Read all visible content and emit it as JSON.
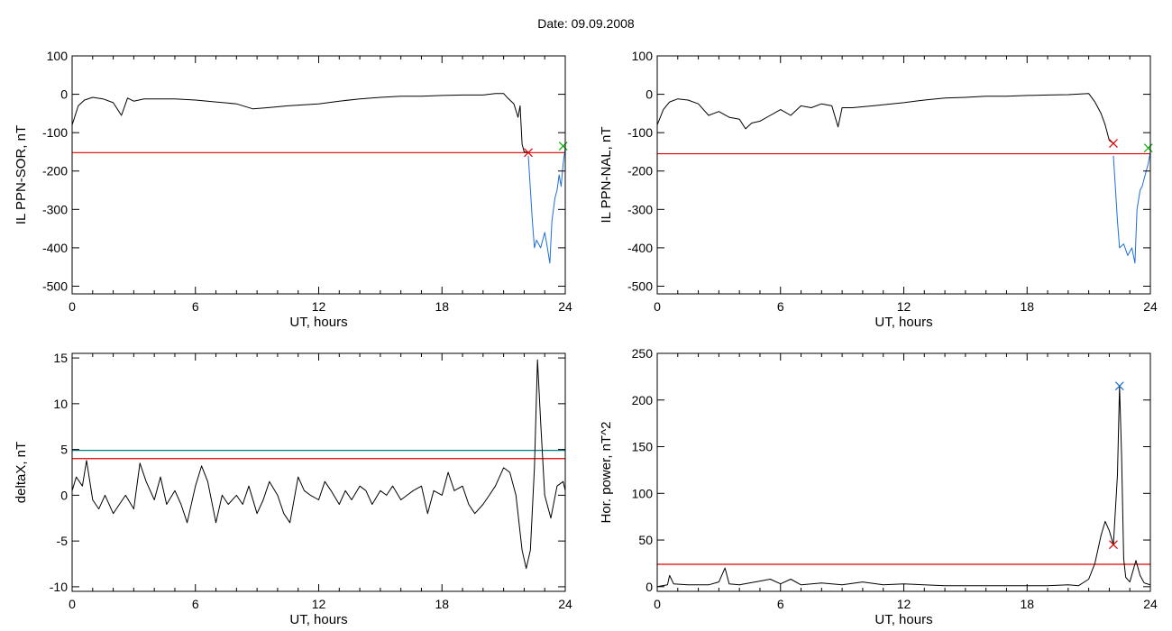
{
  "page_title": "Date:  09.09.2008",
  "colors": {
    "axis": "#000000",
    "trace": "#000000",
    "threshold_red": "#e00000",
    "threshold_teal": "#008080",
    "storm_blue": "#1f6fd6",
    "marker_green": "#00b000"
  },
  "chart_data": [
    {
      "id": "sor",
      "type": "line",
      "ylabel": "IL PPN-SOR, nT",
      "xlabel": "UT, hours",
      "xlim": [
        0,
        24
      ],
      "ylim": [
        -520,
        100
      ],
      "xticks": [
        0,
        6,
        12,
        18,
        24
      ],
      "yticks": [
        100,
        0,
        -100,
        -200,
        -300,
        -400,
        -500
      ],
      "grid": false,
      "series": [
        {
          "color": "#000000",
          "x": [
            0,
            0.3,
            0.6,
            1,
            1.5,
            2,
            2.4,
            2.7,
            3,
            3.5,
            4,
            5,
            6,
            7,
            8,
            8.8,
            9.5,
            10.5,
            12,
            13,
            14,
            15,
            16,
            17,
            18,
            19,
            20,
            20.6,
            21,
            21.2,
            21.5,
            21.7,
            21.8,
            21.9,
            22.0,
            22.2
          ],
          "y": [
            -80,
            -30,
            -15,
            -8,
            -12,
            -22,
            -55,
            -10,
            -18,
            -12,
            -12,
            -12,
            -15,
            -20,
            -25,
            -38,
            -35,
            -30,
            -25,
            -18,
            -12,
            -8,
            -5,
            -5,
            -3,
            -2,
            -2,
            2,
            2,
            -10,
            -25,
            -60,
            -30,
            -130,
            -150,
            -152
          ]
        },
        {
          "color": "#1f6fd6",
          "x": [
            22.2,
            22.4,
            22.5,
            22.6,
            22.8,
            23.0,
            23.1,
            23.25,
            23.35,
            23.5,
            23.6,
            23.7,
            23.8,
            23.9,
            24.0
          ],
          "y": [
            -160,
            -330,
            -400,
            -380,
            -400,
            -360,
            -390,
            -440,
            -330,
            -270,
            -250,
            -210,
            -240,
            -180,
            -140
          ]
        }
      ],
      "thresholds": [
        {
          "y": -152,
          "color": "#e00000"
        }
      ],
      "markers": [
        {
          "x": 22.2,
          "y": -152,
          "color": "#e00000"
        },
        {
          "x": 23.9,
          "y": -135,
          "color": "#00b000"
        }
      ]
    },
    {
      "id": "nal",
      "type": "line",
      "ylabel": "IL PPN-NAL, nT",
      "xlabel": "UT, hours",
      "xlim": [
        0,
        24
      ],
      "ylim": [
        -520,
        100
      ],
      "xticks": [
        0,
        6,
        12,
        18,
        24
      ],
      "yticks": [
        100,
        0,
        -100,
        -200,
        -300,
        -400,
        -500
      ],
      "grid": false,
      "series": [
        {
          "color": "#000000",
          "x": [
            0,
            0.3,
            0.6,
            1,
            1.5,
            2,
            2.5,
            3,
            3.5,
            4,
            4.3,
            4.6,
            5,
            5.5,
            6,
            6.5,
            7,
            7.5,
            8,
            8.5,
            8.8,
            9,
            9.5,
            10.5,
            12,
            13,
            14,
            15,
            16,
            17,
            18,
            19,
            20,
            20.6,
            21,
            21.3,
            21.6,
            21.8,
            22.0,
            22.2
          ],
          "y": [
            -80,
            -40,
            -20,
            -12,
            -15,
            -25,
            -55,
            -45,
            -60,
            -65,
            -90,
            -75,
            -70,
            -55,
            -40,
            -55,
            -30,
            -35,
            -25,
            -30,
            -85,
            -35,
            -35,
            -30,
            -22,
            -15,
            -10,
            -8,
            -5,
            -5,
            -3,
            -2,
            -1,
            1,
            2,
            -20,
            -50,
            -80,
            -120,
            -128
          ]
        },
        {
          "color": "#1f6fd6",
          "x": [
            22.2,
            22.4,
            22.5,
            22.7,
            22.9,
            23.1,
            23.25,
            23.35,
            23.5,
            23.6,
            23.8,
            23.9,
            24.0
          ],
          "y": [
            -160,
            -330,
            -400,
            -390,
            -420,
            -400,
            -440,
            -300,
            -250,
            -240,
            -200,
            -180,
            -150
          ]
        }
      ],
      "thresholds": [
        {
          "y": -155,
          "color": "#e00000"
        }
      ],
      "markers": [
        {
          "x": 22.2,
          "y": -128,
          "color": "#e00000"
        },
        {
          "x": 23.9,
          "y": -140,
          "color": "#00b000"
        }
      ]
    },
    {
      "id": "deltax",
      "type": "line",
      "ylabel": "deltaX, nT",
      "xlabel": "UT, hours",
      "xlim": [
        0,
        24
      ],
      "ylim": [
        -10.5,
        15.5
      ],
      "xticks": [
        0,
        6,
        12,
        18,
        24
      ],
      "yticks": [
        15,
        10,
        5,
        0,
        -5,
        -10
      ],
      "grid": false,
      "series": [
        {
          "color": "#000000",
          "x": [
            0,
            0.2,
            0.5,
            0.7,
            1,
            1.3,
            1.6,
            2,
            2.3,
            2.6,
            3,
            3.3,
            3.6,
            4,
            4.3,
            4.6,
            5,
            5.3,
            5.6,
            6,
            6.3,
            6.6,
            7,
            7.3,
            7.6,
            8,
            8.3,
            8.6,
            9,
            9.3,
            9.6,
            10,
            10.3,
            10.6,
            11,
            11.3,
            11.6,
            12,
            12.3,
            12.6,
            13,
            13.3,
            13.6,
            14,
            14.3,
            14.6,
            15,
            15.3,
            15.6,
            16,
            16.3,
            16.6,
            17,
            17.3,
            17.6,
            18,
            18.3,
            18.6,
            19,
            19.3,
            19.6,
            20,
            20.3,
            20.6,
            21,
            21.3,
            21.6,
            21.9,
            22.1,
            22.3,
            22.5,
            22.65,
            22.8,
            23.0,
            23.3,
            23.6,
            23.9,
            24.0
          ],
          "y": [
            0.5,
            2,
            1,
            3.8,
            -0.5,
            -1.5,
            0,
            -2,
            -1,
            0,
            -1.5,
            3.5,
            1.5,
            -0.5,
            2,
            -1,
            0.5,
            -1,
            -3,
            1,
            3.2,
            1.5,
            -3,
            0,
            -1,
            0,
            -1,
            1,
            -2,
            -0.5,
            1.5,
            0,
            -2,
            -3,
            2,
            0.5,
            0,
            -0.5,
            1.5,
            0.5,
            -1,
            0.5,
            -0.5,
            1,
            0.5,
            -1,
            0.5,
            0,
            1,
            -0.5,
            0,
            0.5,
            1,
            -2,
            0.5,
            0,
            2.5,
            0.5,
            1,
            -1,
            -2,
            -1,
            0,
            1,
            3,
            2.5,
            0,
            -6,
            -8,
            -6,
            3,
            14.8,
            8,
            0,
            -2.5,
            1,
            1.5,
            0.5
          ]
        }
      ],
      "thresholds": [
        {
          "y": 4.9,
          "color": "#008080"
        },
        {
          "y": 4.0,
          "color": "#e00000"
        }
      ],
      "markers": []
    },
    {
      "id": "power",
      "type": "line",
      "ylabel": "Hor. power, nT^2",
      "xlabel": "UT, hours",
      "xlim": [
        0,
        24
      ],
      "ylim": [
        -5,
        250
      ],
      "xticks": [
        0,
        6,
        12,
        18,
        24
      ],
      "yticks": [
        250,
        200,
        150,
        100,
        50,
        0
      ],
      "grid": false,
      "series": [
        {
          "color": "#000000",
          "x": [
            0,
            0.5,
            0.6,
            0.8,
            1.5,
            2.5,
            3.0,
            3.3,
            3.5,
            4,
            5,
            5.5,
            6,
            6.5,
            7,
            8,
            9,
            10,
            11,
            12,
            14,
            16,
            18,
            19,
            20,
            20.5,
            21,
            21.3,
            21.6,
            21.8,
            22.0,
            22.2,
            22.4,
            22.5,
            22.6,
            22.7,
            22.8,
            23.0,
            23.3,
            23.5,
            23.7,
            24.0
          ],
          "y": [
            0,
            2,
            12,
            3,
            2,
            2,
            5,
            20,
            3,
            2,
            6,
            8,
            3,
            8,
            2,
            4,
            2,
            5,
            2,
            3,
            1,
            1,
            1,
            1,
            2,
            1,
            8,
            25,
            55,
            70,
            60,
            45,
            120,
            215,
            140,
            30,
            10,
            5,
            28,
            12,
            4,
            2
          ]
        }
      ],
      "thresholds": [
        {
          "y": 24,
          "color": "#e00000"
        }
      ],
      "markers": [
        {
          "x": 22.2,
          "y": 45,
          "color": "#e00000"
        },
        {
          "x": 22.5,
          "y": 215,
          "color": "#1f6fd6"
        }
      ]
    }
  ]
}
